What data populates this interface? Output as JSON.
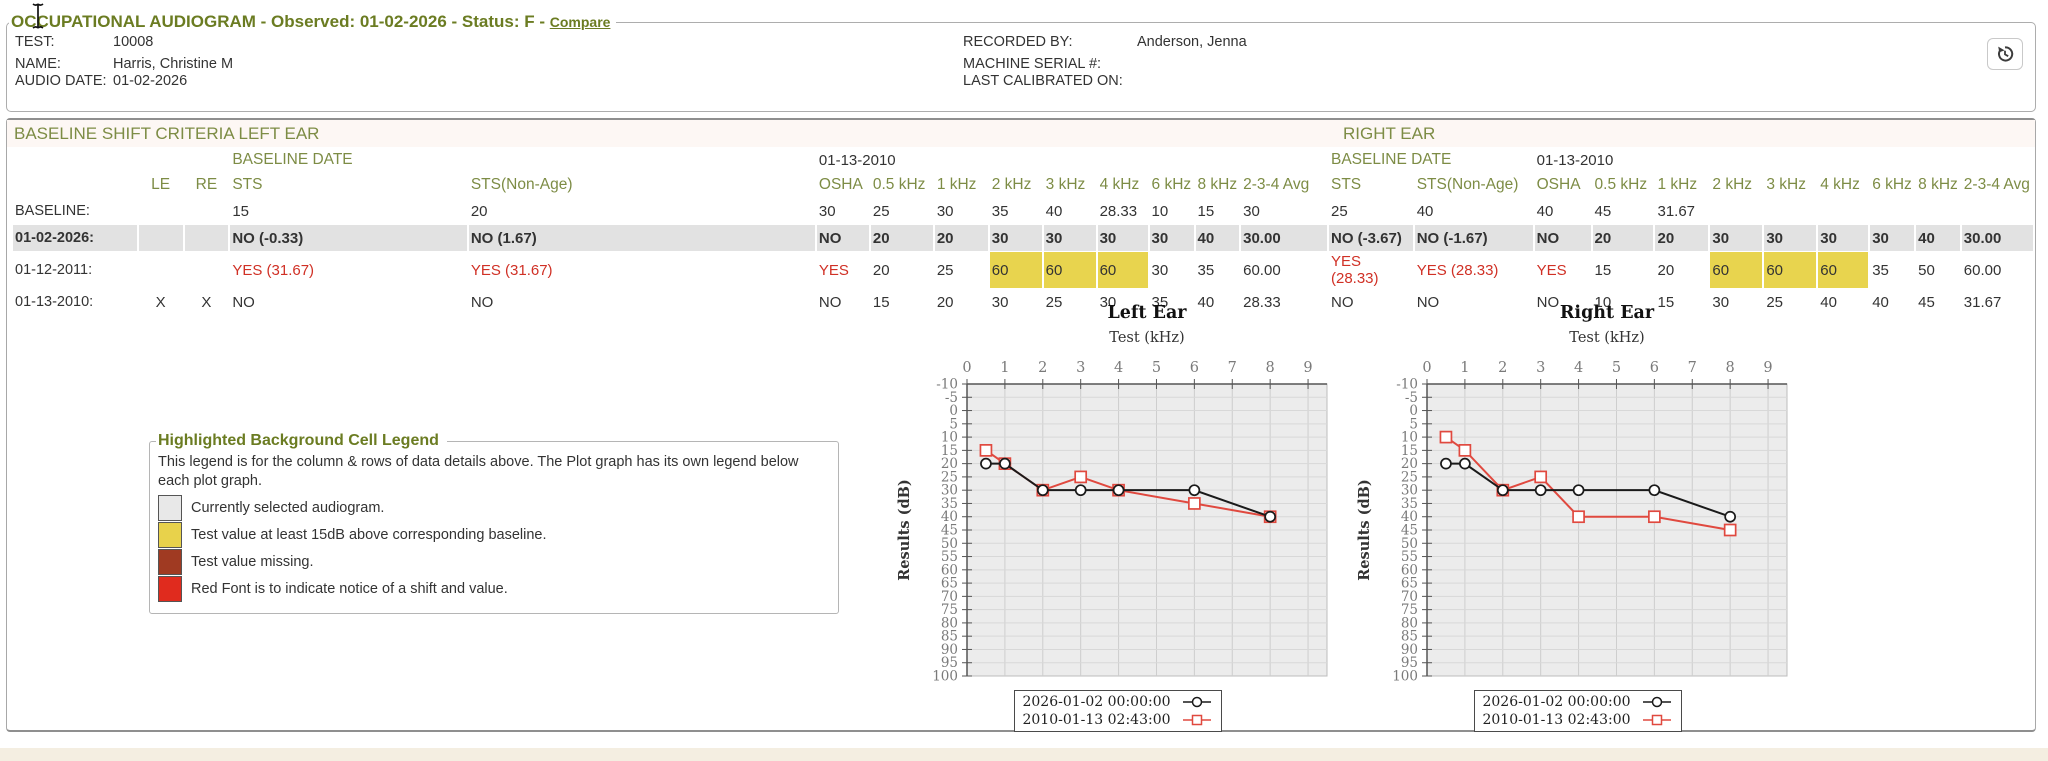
{
  "header": {
    "title": "OCCUPATIONAL AUDIOGRAM - Observed: 01-02-2026 - Status: F -",
    "compare_label": "Compare",
    "fields_left": [
      {
        "label": "TEST:",
        "value": "10008"
      },
      {
        "label": "NAME:",
        "value": "Harris, Christine M"
      },
      {
        "label": "AUDIO DATE:",
        "value": "01-02-2026"
      }
    ],
    "fields_right": [
      {
        "label": "RECORDED BY:",
        "value": "Anderson, Jenna"
      },
      {
        "label": "MACHINE SERIAL #:",
        "value": ""
      },
      {
        "label": "LAST CALIBRATED ON:",
        "value": ""
      }
    ],
    "history_icon": "history-restore-icon"
  },
  "criteria": {
    "left_title": "BASELINE SHIFT CRITERIA LEFT EAR",
    "right_title": "RIGHT EAR",
    "baseline_date_label": "BASELINE DATE",
    "left_baseline_date": "01-13-2010",
    "right_baseline_date": "01-13-2010",
    "column_headers": [
      "LE",
      "RE",
      "STS",
      "STS(Non-Age)",
      "OSHA",
      "0.5 kHz",
      "1 kHz",
      "2 kHz",
      "3 kHz",
      "4 kHz",
      "6 kHz",
      "8 kHz",
      "2-3-4 Avg",
      "STS",
      "STS(Non-Age)",
      "OSHA",
      "0.5 kHz",
      "1 kHz",
      "2 kHz",
      "3 kHz",
      "4 kHz",
      "6 kHz",
      "8 kHz",
      "2-3-4 Avg"
    ],
    "rows": [
      {
        "label": "BASELINE:",
        "selected": false,
        "cells": [
          "",
          "",
          "15",
          "20",
          "30",
          "25",
          "30",
          "35",
          "40",
          "28.33",
          "10",
          "15",
          "30",
          "25",
          "40",
          "40",
          "45",
          "31.67",
          "",
          "",
          "",
          "",
          "",
          ""
        ]
      },
      {
        "label": "01-02-2026:",
        "selected": true,
        "cells": [
          "",
          "",
          "NO (-0.33)",
          "NO (1.67)",
          "NO",
          "20",
          "20",
          "30",
          "30",
          "30",
          "30",
          "40",
          "30.00",
          "NO (-3.67)",
          "NO (-1.67)",
          "NO",
          "20",
          "20",
          "30",
          "30",
          "30",
          "30",
          "40",
          "30.00"
        ]
      },
      {
        "label": "01-12-2011:",
        "selected": false,
        "cells": [
          "",
          "",
          {
            "t": "YES (31.67)",
            "red": true
          },
          {
            "t": "YES (31.67)",
            "red": true
          },
          {
            "t": "YES",
            "red": true
          },
          "20",
          "25",
          {
            "t": "60",
            "hl": true
          },
          {
            "t": "60",
            "hl": true
          },
          {
            "t": "60",
            "hl": true
          },
          "30",
          "35",
          "60.00",
          {
            "t": "YES (28.33)",
            "red": true
          },
          {
            "t": "YES (28.33)",
            "red": true
          },
          {
            "t": "YES",
            "red": true
          },
          "15",
          "20",
          {
            "t": "60",
            "hl": true
          },
          {
            "t": "60",
            "hl": true
          },
          {
            "t": "60",
            "hl": true
          },
          "35",
          "50",
          "60.00"
        ]
      },
      {
        "label": "01-13-2010:",
        "selected": false,
        "cells": [
          "X",
          "X",
          "NO",
          "NO",
          "NO",
          "15",
          "20",
          "30",
          "25",
          "30",
          "35",
          "40",
          "28.33",
          "NO",
          "NO",
          "NO",
          "10",
          "15",
          "30",
          "25",
          "40",
          "40",
          "45",
          "31.67"
        ]
      }
    ]
  },
  "cell_legend": {
    "title": "Highlighted Background Cell Legend",
    "description": "This legend is for the column & rows of data details above. The Plot graph has its own legend below each plot graph.",
    "items": [
      {
        "color": "#e8e8e8",
        "label": "Currently selected audiogram."
      },
      {
        "color": "#e8d24b",
        "label": "Test value at least 15dB above corresponding baseline."
      },
      {
        "color": "#a03a22",
        "label": "Test value missing."
      },
      {
        "color": "#e02b1e",
        "label": "Red Font is to indicate notice of a shift and value."
      }
    ]
  },
  "chart_data": [
    {
      "type": "line",
      "title": "Left Ear",
      "xlabel": "Test (kHz)",
      "ylabel": "Results (dB)",
      "xlim": [
        0,
        9.5
      ],
      "ylim": [
        -10,
        100
      ],
      "y_inverted": true,
      "x_ticks": [
        0,
        1,
        2,
        3,
        4,
        5,
        6,
        7,
        8,
        9
      ],
      "y_tick_step": 5,
      "grid": true,
      "legend_position": "bottom",
      "series": [
        {
          "name": "2026-01-02 00:00:00",
          "color": "#1a1a1a",
          "marker": "circle",
          "x": [
            0.5,
            1,
            2,
            3,
            4,
            6,
            8
          ],
          "y": [
            20,
            20,
            30,
            30,
            30,
            30,
            40
          ]
        },
        {
          "name": "2010-01-13 02:43:00",
          "color": "#e0493f",
          "marker": "square",
          "x": [
            0.5,
            1,
            2,
            3,
            4,
            6,
            8
          ],
          "y": [
            15,
            20,
            30,
            25,
            30,
            35,
            40
          ]
        }
      ]
    },
    {
      "type": "line",
      "title": "Right Ear",
      "xlabel": "Test (kHz)",
      "ylabel": "Results (dB)",
      "xlim": [
        0,
        9.5
      ],
      "ylim": [
        -10,
        100
      ],
      "y_inverted": true,
      "x_ticks": [
        0,
        1,
        2,
        3,
        4,
        5,
        6,
        7,
        8,
        9
      ],
      "y_tick_step": 5,
      "grid": true,
      "legend_position": "bottom",
      "series": [
        {
          "name": "2026-01-02 00:00:00",
          "color": "#1a1a1a",
          "marker": "circle",
          "x": [
            0.5,
            1,
            2,
            3,
            4,
            6,
            8
          ],
          "y": [
            20,
            20,
            30,
            30,
            30,
            30,
            40
          ]
        },
        {
          "name": "2010-01-13 02:43:00",
          "color": "#e0493f",
          "marker": "square",
          "x": [
            0.5,
            1,
            2,
            3,
            4,
            6,
            8
          ],
          "y": [
            10,
            15,
            30,
            25,
            40,
            40,
            45
          ]
        }
      ]
    }
  ],
  "colors": {
    "accent_olive": "#7d8c45",
    "title_olive": "#6b7c22",
    "shift_red": "#d03025",
    "highlight_yellow": "#e8d44e",
    "selected_gray": "#e2e2e2"
  }
}
